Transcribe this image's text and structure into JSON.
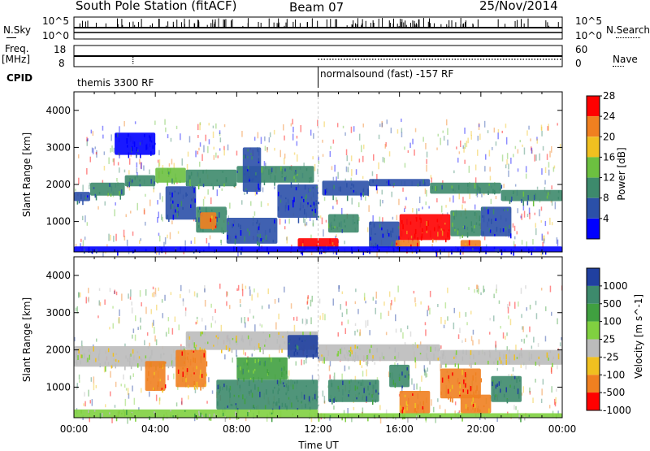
{
  "header": {
    "station": "South Pole Station (fitACF)",
    "beam": "Beam 07",
    "date": "25/Nov/2014"
  },
  "panels": {
    "nsky": {
      "label_a": "N.Sky",
      "tick_top": "10^5",
      "tick_bottom": "10^0",
      "right_label": "N.Search",
      "right_tick_top": "10^5",
      "right_tick_bottom": "10^0"
    },
    "freq": {
      "label_a": "Freq.",
      "label_b": "[MHz]",
      "tick_top": "18",
      "tick_bottom": "8",
      "right_label": "Nave",
      "right_tick_top": "60",
      "right_tick_bottom": "0"
    },
    "cpid": {
      "label": "CPID",
      "mode_1": "themis 3300 RF",
      "mode_2": "normalsound (fast) -157 RF"
    }
  },
  "chart_data": [
    {
      "type": "heatmap",
      "name": "power",
      "xlabel": "",
      "ylabel": "Slant Range [km]",
      "xlim": [
        0,
        24
      ],
      "ylim": [
        180,
        4500
      ],
      "yticks": [
        1000,
        2000,
        3000,
        4000
      ],
      "colorbar": {
        "label": "Power [dB]",
        "ticks": [
          "4",
          "8",
          "12",
          "16",
          "20",
          "24",
          "28"
        ],
        "colors": [
          "#0000ff",
          "#2b50a8",
          "#3d8a6c",
          "#6cc040",
          "#f0c020",
          "#f08020",
          "#ff0000"
        ]
      },
      "regions": [
        {
          "t0": 0.0,
          "t1": 0.8,
          "r0": 1550,
          "r1": 1800,
          "level": 1
        },
        {
          "t0": 0.8,
          "t1": 2.5,
          "r0": 1700,
          "r1": 2050,
          "level": 2
        },
        {
          "t0": 2.5,
          "t1": 4.0,
          "r0": 1950,
          "r1": 2250,
          "level": 2
        },
        {
          "t0": 4.0,
          "t1": 5.5,
          "r0": 2050,
          "r1": 2450,
          "level": 3
        },
        {
          "t0": 5.5,
          "t1": 8.0,
          "r0": 1950,
          "r1": 2400,
          "level": 2
        },
        {
          "t0": 8.0,
          "t1": 11.8,
          "r0": 2050,
          "r1": 2500,
          "level": 2
        },
        {
          "t0": 12.2,
          "t1": 14.5,
          "r0": 1700,
          "r1": 2100,
          "level": 1
        },
        {
          "t0": 14.5,
          "t1": 17.5,
          "r0": 1950,
          "r1": 2150,
          "level": 1
        },
        {
          "t0": 17.5,
          "t1": 21.0,
          "r0": 1750,
          "r1": 2050,
          "level": 2
        },
        {
          "t0": 21.0,
          "t1": 24.0,
          "r0": 1550,
          "r1": 1850,
          "level": 2
        },
        {
          "t0": 4.5,
          "t1": 6.0,
          "r0": 1050,
          "r1": 1950,
          "level": 1
        },
        {
          "t0": 6.0,
          "t1": 7.5,
          "r0": 700,
          "r1": 1400,
          "level": 2
        },
        {
          "t0": 6.2,
          "t1": 7.0,
          "r0": 800,
          "r1": 1250,
          "level": 5
        },
        {
          "t0": 7.5,
          "t1": 10.0,
          "r0": 400,
          "r1": 1100,
          "level": 1
        },
        {
          "t0": 8.3,
          "t1": 9.2,
          "r0": 1800,
          "r1": 3000,
          "level": 1
        },
        {
          "t0": 10.0,
          "t1": 12.0,
          "r0": 1100,
          "r1": 2000,
          "level": 1
        },
        {
          "t0": 12.5,
          "t1": 14.0,
          "r0": 700,
          "r1": 1200,
          "level": 2
        },
        {
          "t0": 14.5,
          "t1": 16.0,
          "r0": 300,
          "r1": 1000,
          "level": 1
        },
        {
          "t0": 16.0,
          "t1": 18.5,
          "r0": 500,
          "r1": 1200,
          "level": 6
        },
        {
          "t0": 18.5,
          "t1": 20.0,
          "r0": 600,
          "r1": 1300,
          "level": 2
        },
        {
          "t0": 20.0,
          "t1": 21.5,
          "r0": 600,
          "r1": 1400,
          "level": 1
        },
        {
          "t0": 11.0,
          "t1": 13.0,
          "r0": 250,
          "r1": 550,
          "level": 6
        },
        {
          "t0": 15.8,
          "t1": 17.0,
          "r0": 250,
          "r1": 500,
          "level": 5
        },
        {
          "t0": 19.0,
          "t1": 20.0,
          "r0": 250,
          "r1": 500,
          "level": 5
        },
        {
          "t0": 2.0,
          "t1": 4.0,
          "r0": 2800,
          "r1": 3400,
          "level": 0
        },
        {
          "t0": 0.0,
          "t1": 24.0,
          "r0": 180,
          "r1": 330,
          "level": 0
        }
      ]
    },
    {
      "type": "heatmap",
      "name": "velocity",
      "xlabel": "Time UT",
      "ylabel": "Slant Range [km]",
      "xlim": [
        0,
        24
      ],
      "ylim": [
        180,
        4500
      ],
      "xticks": [
        "00:00",
        "04:00",
        "08:00",
        "12:00",
        "16:00",
        "20:00",
        "00:00"
      ],
      "yticks": [
        1000,
        2000,
        3000,
        4000
      ],
      "colorbar": {
        "label": "Velocity [m s^-1]",
        "ticks": [
          "1000",
          "500",
          "100",
          "25",
          "-25",
          "-100",
          "-500",
          "-1000"
        ],
        "colors": [
          "#2040a0",
          "#3d8a6c",
          "#40a040",
          "#80d040",
          "#bbbbbb",
          "#f0c020",
          "#f08020",
          "#ff0000"
        ]
      },
      "regions": [
        {
          "t0": 0.0,
          "t1": 5.5,
          "r0": 1550,
          "r1": 2100,
          "level": 4
        },
        {
          "t0": 5.5,
          "t1": 12.0,
          "r0": 2000,
          "r1": 2500,
          "level": 4
        },
        {
          "t0": 12.0,
          "t1": 18.0,
          "r0": 1700,
          "r1": 2150,
          "level": 4
        },
        {
          "t0": 18.0,
          "t1": 24.0,
          "r0": 1600,
          "r1": 2000,
          "level": 4
        },
        {
          "t0": 3.5,
          "t1": 4.5,
          "r0": 900,
          "r1": 1700,
          "level": 6
        },
        {
          "t0": 5.0,
          "t1": 6.5,
          "r0": 1000,
          "r1": 2000,
          "level": 6
        },
        {
          "t0": 7.0,
          "t1": 12.0,
          "r0": 400,
          "r1": 1200,
          "level": 1
        },
        {
          "t0": 8.0,
          "t1": 10.5,
          "r0": 1200,
          "r1": 1800,
          "level": 2
        },
        {
          "t0": 10.5,
          "t1": 12.0,
          "r0": 1800,
          "r1": 2400,
          "level": 0
        },
        {
          "t0": 12.5,
          "t1": 15.0,
          "r0": 600,
          "r1": 1200,
          "level": 1
        },
        {
          "t0": 15.5,
          "t1": 16.5,
          "r0": 1000,
          "r1": 1600,
          "level": 1
        },
        {
          "t0": 16.0,
          "t1": 17.5,
          "r0": 300,
          "r1": 900,
          "level": 6
        },
        {
          "t0": 18.0,
          "t1": 20.0,
          "r0": 700,
          "r1": 1500,
          "level": 6
        },
        {
          "t0": 19.0,
          "t1": 20.5,
          "r0": 300,
          "r1": 800,
          "level": 6
        },
        {
          "t0": 20.5,
          "t1": 22.0,
          "r0": 600,
          "r1": 1300,
          "level": 1
        },
        {
          "t0": 0.0,
          "t1": 12.0,
          "r0": 180,
          "r1": 400,
          "level": 3
        },
        {
          "t0": 12.0,
          "t1": 24.0,
          "r0": 180,
          "r1": 300,
          "level": 3
        }
      ]
    }
  ]
}
